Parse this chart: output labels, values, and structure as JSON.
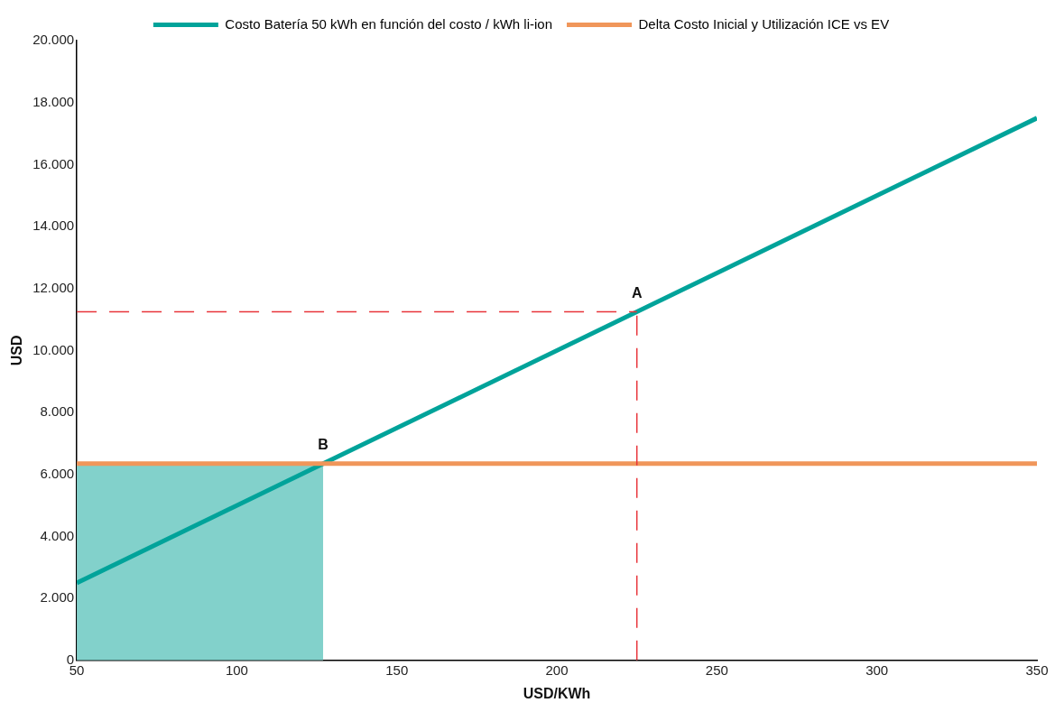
{
  "chart_data": {
    "type": "line",
    "xlabel": "USD/KWh",
    "ylabel": "USD",
    "series": [
      {
        "type": "area",
        "x": [
          50,
          127
        ],
        "values": [
          6350,
          6350
        ],
        "color": "#82d1cb"
      },
      {
        "name": "Costo Batería 50 kWh en función del costo / kWh li-ion",
        "x": [
          50,
          350
        ],
        "values": [
          2500,
          17500
        ],
        "color": "#00a39a"
      },
      {
        "name": "Delta Costo Inicial y Utilización ICE vs EV",
        "x": [
          50,
          350
        ],
        "values": [
          6350,
          6350
        ],
        "color": "#f0965a"
      },
      {
        "type": "line",
        "x": [
          50,
          225
        ],
        "values": [
          11250,
          11250
        ],
        "color": "#e8343a",
        "line_style": "dashed"
      },
      {
        "type": "line",
        "x": [
          225,
          225
        ],
        "values": [
          0,
          11250
        ],
        "color": "#e8343a",
        "line_style": "dashed"
      }
    ],
    "xlim": [
      50,
      350
    ],
    "xticks": [
      50,
      100,
      150,
      200,
      250,
      300,
      350
    ],
    "ylim": [
      0,
      20000
    ],
    "yticks": [
      0,
      {
        "value": 2000,
        "label": "2.000"
      },
      {
        "value": 4000,
        "label": "4.000"
      },
      {
        "value": 6000,
        "label": "6.000"
      },
      {
        "value": 8000,
        "label": "8.000"
      },
      {
        "value": 10000,
        "label": "10.000"
      },
      {
        "value": 12000,
        "label": "12.000"
      },
      {
        "value": 14000,
        "label": "14.000"
      },
      {
        "value": 16000,
        "label": "16.000"
      },
      {
        "value": 18000,
        "label": "18.000"
      },
      {
        "value": 20000,
        "label": "20.000"
      }
    ],
    "grid": false,
    "legend": "top",
    "marker": "none",
    "annotations": [
      {
        "text": "A",
        "x": 225,
        "y": 11250
      },
      {
        "text": "B",
        "x": 127,
        "y": 6350
      }
    ]
  }
}
